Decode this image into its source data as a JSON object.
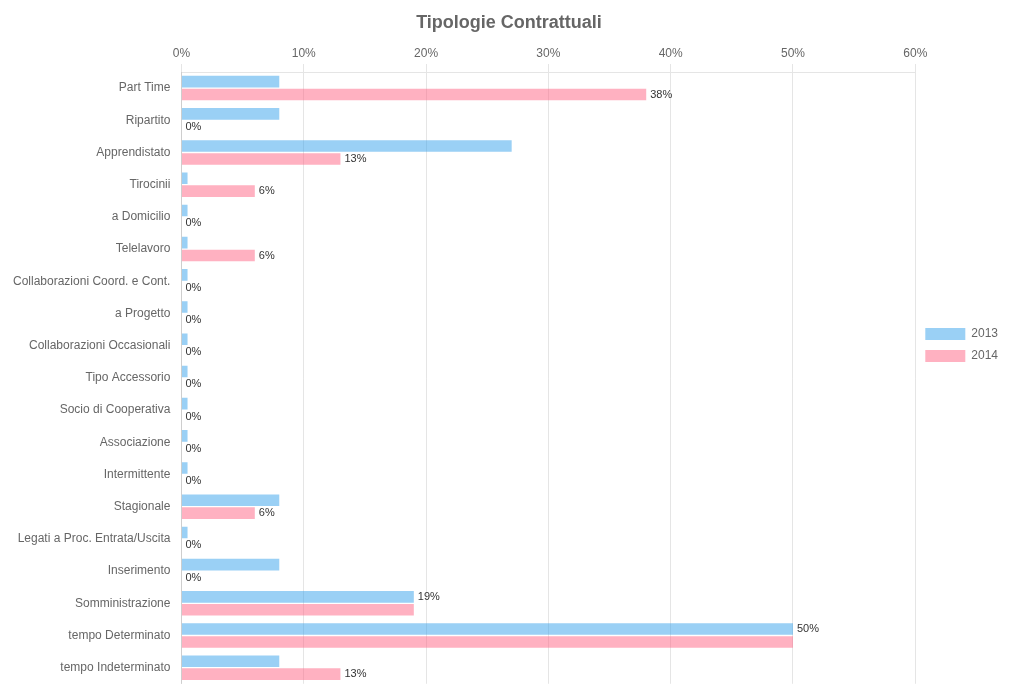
{
  "chart_data": {
    "type": "bar",
    "orientation": "horizontal",
    "title": "Tipologie Contrattuali",
    "categories": [
      "tempo Indeterminato",
      "tempo Determinato",
      "Somministrazione",
      "Inserimento",
      "Legati a Proc. Entrata/Uscita",
      "Stagionale",
      "Intermittente",
      "Associazione",
      "Socio di Cooperativa",
      "Tipo Accessorio",
      "Collaborazioni Occasionali",
      "a Progetto",
      "Collaborazioni Coord. e Cont.",
      "Telelavoro",
      "a Domicilio",
      "Tirocinii",
      "Apprendistato",
      "Ripartito",
      "Part Time"
    ],
    "series": [
      {
        "name": "2013",
        "values": [
          8,
          50,
          19,
          8,
          0.5,
          8,
          0.5,
          0.5,
          0.5,
          0.5,
          0.5,
          0.5,
          0.5,
          0.5,
          0.5,
          0.5,
          27,
          8,
          8
        ],
        "value_labels": [
          null,
          "50%",
          "19%",
          null,
          null,
          null,
          null,
          null,
          null,
          null,
          null,
          null,
          null,
          null,
          null,
          null,
          null,
          null,
          null
        ]
      },
      {
        "name": "2014",
        "values": [
          13,
          50,
          19,
          0,
          0,
          6,
          0,
          0,
          0,
          0,
          0,
          0,
          0,
          6,
          0,
          6,
          13,
          0,
          38
        ],
        "value_labels": [
          "13%",
          null,
          null,
          "0%",
          "0%",
          "6%",
          "0%",
          "0%",
          "0%",
          "0%",
          "0%",
          "0%",
          "0%",
          "6%",
          "0%",
          "6%",
          "13%",
          "0%",
          "38%"
        ]
      }
    ],
    "xlim": [
      0,
      60
    ],
    "xticks": [
      {
        "value": 0,
        "label": "0%"
      },
      {
        "value": 10,
        "label": "10%"
      },
      {
        "value": 20,
        "label": "20%"
      },
      {
        "value": 30,
        "label": "30%"
      },
      {
        "value": 40,
        "label": "40%"
      },
      {
        "value": 50,
        "label": "50%"
      },
      {
        "value": 60,
        "label": "60%"
      }
    ],
    "grid": true,
    "legend": "right",
    "data_labels": true
  }
}
